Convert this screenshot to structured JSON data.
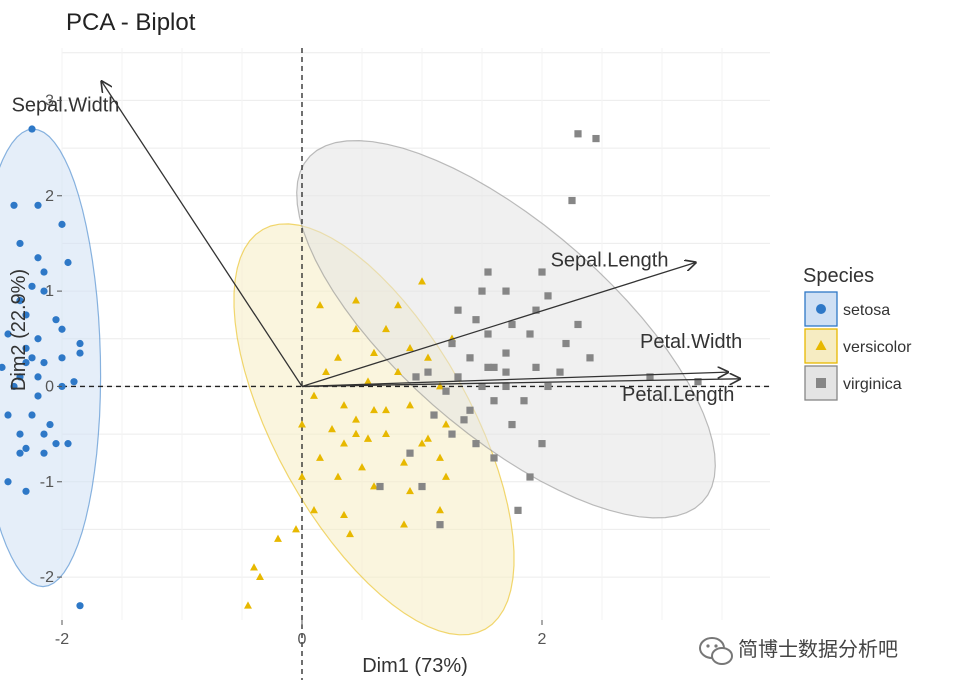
{
  "chart_data": {
    "type": "scatter",
    "title": "PCA - Biplot",
    "xlabel": "Dim1 (73%)",
    "ylabel": "Dim2 (22.9%)",
    "xlim": [
      -2.0,
      3.9
    ],
    "ylim": [
      -2.45,
      3.55
    ],
    "x_ticks": [
      -2,
      0,
      2
    ],
    "y_ticks": [
      -2,
      -1,
      0,
      1,
      2,
      3
    ],
    "grid": true,
    "reference_lines": {
      "x": 0,
      "y": 0,
      "style": "dashed"
    },
    "legend": {
      "title": "Species",
      "placement": "right"
    },
    "series": [
      {
        "name": "setosa",
        "marker": "circle",
        "color": "#2e78c7",
        "ellipse": {
          "cx": -2.2,
          "cy": 0.3,
          "rx": 2.4,
          "ry": 0.52,
          "angle_deg": -89,
          "fill": "#cfe0f4"
        },
        "points": [
          [
            -2.25,
            2.7
          ],
          [
            -2.65,
            2.0
          ],
          [
            -2.4,
            1.9
          ],
          [
            -2.65,
            1.8
          ],
          [
            -2.2,
            1.9
          ],
          [
            -2.0,
            1.7
          ],
          [
            -2.35,
            1.5
          ],
          [
            -2.2,
            1.35
          ],
          [
            -2.15,
            1.2
          ],
          [
            -2.25,
            1.05
          ],
          [
            -2.15,
            1.0
          ],
          [
            -1.95,
            1.3
          ],
          [
            -2.35,
            0.9
          ],
          [
            -2.55,
            0.95
          ],
          [
            -2.75,
            0.9
          ],
          [
            -2.3,
            0.75
          ],
          [
            -2.05,
            0.7
          ],
          [
            -2.45,
            0.55
          ],
          [
            -2.2,
            0.5
          ],
          [
            -2.0,
            0.6
          ],
          [
            -2.3,
            0.4
          ],
          [
            -2.25,
            0.3
          ],
          [
            -2.3,
            0.25
          ],
          [
            -2.15,
            0.25
          ],
          [
            -2.5,
            0.2
          ],
          [
            -2.35,
            0.1
          ],
          [
            -2.2,
            0.1
          ],
          [
            -2.4,
            0.0
          ],
          [
            -2.65,
            0.5
          ],
          [
            -2.8,
            0.1
          ],
          [
            -2.0,
            0.3
          ],
          [
            -1.85,
            0.35
          ],
          [
            -1.9,
            0.05
          ],
          [
            -2.0,
            0.0
          ],
          [
            -2.2,
            -0.1
          ],
          [
            -2.45,
            -0.3
          ],
          [
            -2.25,
            -0.3
          ],
          [
            -2.1,
            -0.4
          ],
          [
            -2.55,
            -0.5
          ],
          [
            -2.35,
            -0.5
          ],
          [
            -2.15,
            -0.5
          ],
          [
            -2.05,
            -0.6
          ],
          [
            -2.3,
            -0.65
          ],
          [
            -2.15,
            -0.7
          ],
          [
            -1.95,
            -0.6
          ],
          [
            -2.45,
            -1.0
          ],
          [
            -2.6,
            -1.0
          ],
          [
            -2.3,
            -1.1
          ],
          [
            -2.35,
            -0.7
          ],
          [
            -1.85,
            0.45
          ],
          [
            -2.75,
            0.45
          ],
          [
            -1.85,
            -2.3
          ]
        ]
      },
      {
        "name": "versicolor",
        "marker": "triangle",
        "color": "#e7b800",
        "ellipse": {
          "cx": 0.6,
          "cy": -0.45,
          "rx": 2.3,
          "ry": 0.85,
          "angle_deg": -68,
          "fill": "#f6ecc2"
        },
        "points": [
          [
            1.0,
            1.1
          ],
          [
            0.45,
            0.9
          ],
          [
            0.8,
            0.85
          ],
          [
            0.15,
            0.85
          ],
          [
            0.45,
            0.6
          ],
          [
            1.25,
            0.5
          ],
          [
            0.7,
            0.6
          ],
          [
            0.9,
            0.4
          ],
          [
            0.6,
            0.35
          ],
          [
            1.05,
            0.3
          ],
          [
            0.3,
            0.3
          ],
          [
            0.8,
            0.15
          ],
          [
            0.55,
            0.05
          ],
          [
            1.15,
            0.0
          ],
          [
            0.1,
            -0.1
          ],
          [
            0.35,
            -0.2
          ],
          [
            0.6,
            -0.25
          ],
          [
            0.9,
            -0.2
          ],
          [
            0.45,
            -0.35
          ],
          [
            1.2,
            -0.4
          ],
          [
            0.0,
            -0.4
          ],
          [
            0.25,
            -0.45
          ],
          [
            0.7,
            -0.5
          ],
          [
            0.55,
            -0.55
          ],
          [
            1.05,
            -0.55
          ],
          [
            0.35,
            -0.6
          ],
          [
            0.15,
            -0.75
          ],
          [
            0.5,
            -0.85
          ],
          [
            0.85,
            -0.8
          ],
          [
            1.15,
            -0.75
          ],
          [
            0.3,
            -0.95
          ],
          [
            0.0,
            -0.95
          ],
          [
            0.6,
            -1.05
          ],
          [
            1.2,
            -0.95
          ],
          [
            0.9,
            -1.1
          ],
          [
            0.1,
            -1.3
          ],
          [
            0.35,
            -1.35
          ],
          [
            1.15,
            -1.3
          ],
          [
            -0.05,
            -1.5
          ],
          [
            0.4,
            -1.55
          ],
          [
            -0.2,
            -1.6
          ],
          [
            0.85,
            -1.45
          ],
          [
            -0.4,
            -1.9
          ],
          [
            -0.35,
            -2.0
          ],
          [
            -0.45,
            -2.3
          ],
          [
            0.55,
            -0.55
          ],
          [
            0.45,
            -0.5
          ],
          [
            0.7,
            -0.25
          ],
          [
            1.0,
            -0.6
          ],
          [
            0.2,
            0.15
          ]
        ]
      },
      {
        "name": "virginica",
        "marker": "square",
        "color": "#868686",
        "ellipse": {
          "cx": 1.7,
          "cy": 0.6,
          "rx": 2.45,
          "ry": 0.98,
          "angle_deg": -50,
          "fill": "#e4e4e4"
        },
        "points": [
          [
            2.3,
            2.65
          ],
          [
            2.45,
            2.6
          ],
          [
            2.25,
            1.95
          ],
          [
            2.0,
            1.2
          ],
          [
            1.7,
            1.0
          ],
          [
            2.05,
            0.95
          ],
          [
            1.5,
            1.0
          ],
          [
            1.95,
            0.8
          ],
          [
            1.45,
            0.7
          ],
          [
            1.75,
            0.65
          ],
          [
            1.55,
            0.55
          ],
          [
            1.3,
            0.8
          ],
          [
            1.7,
            0.35
          ],
          [
            1.25,
            0.45
          ],
          [
            2.2,
            0.45
          ],
          [
            1.4,
            0.3
          ],
          [
            1.95,
            0.2
          ],
          [
            2.15,
            0.15
          ],
          [
            2.4,
            0.3
          ],
          [
            1.55,
            0.2
          ],
          [
            1.7,
            0.15
          ],
          [
            1.5,
            0.0
          ],
          [
            1.3,
            0.1
          ],
          [
            1.2,
            -0.05
          ],
          [
            1.05,
            0.15
          ],
          [
            2.05,
            0.0
          ],
          [
            1.85,
            -0.15
          ],
          [
            1.6,
            -0.15
          ],
          [
            1.4,
            -0.25
          ],
          [
            1.1,
            -0.3
          ],
          [
            0.95,
            0.1
          ],
          [
            1.7,
            0.0
          ],
          [
            1.25,
            -0.5
          ],
          [
            1.45,
            -0.6
          ],
          [
            0.9,
            -0.7
          ],
          [
            1.6,
            -0.75
          ],
          [
            1.9,
            -0.95
          ],
          [
            1.0,
            -1.05
          ],
          [
            1.35,
            -0.35
          ],
          [
            2.0,
            -0.6
          ],
          [
            1.75,
            -0.4
          ],
          [
            1.15,
            -1.45
          ],
          [
            0.65,
            -1.05
          ],
          [
            3.3,
            0.05
          ],
          [
            2.9,
            0.1
          ],
          [
            1.9,
            0.55
          ],
          [
            2.3,
            0.65
          ],
          [
            1.55,
            1.2
          ],
          [
            1.6,
            0.2
          ],
          [
            1.8,
            -1.3
          ]
        ]
      }
    ],
    "variables": [
      {
        "name": "Sepal.Width",
        "x": -1.67,
        "y": 3.2
      },
      {
        "name": "Sepal.Length",
        "x": 3.28,
        "y": 1.3
      },
      {
        "name": "Petal.Width",
        "x": 3.55,
        "y": 0.15
      },
      {
        "name": "Petal.Length",
        "x": 3.65,
        "y": 0.08
      }
    ]
  },
  "watermark": {
    "text": "简博士数据分析吧",
    "icon": "wechat-icon"
  }
}
